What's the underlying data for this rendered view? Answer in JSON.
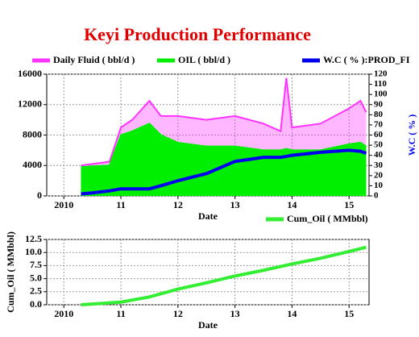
{
  "chart_data": [
    {
      "type": "line",
      "title": "Keyi Production Performance",
      "xlabel": "Date",
      "y2label": "W.C ( % )",
      "x": [
        2010.3,
        2010.5,
        2010.8,
        2011.0,
        2011.2,
        2011.5,
        2011.7,
        2012.0,
        2012.5,
        2013.0,
        2013.5,
        2013.8,
        2013.9,
        2014.0,
        2014.5,
        2015.0,
        2015.2,
        2015.3
      ],
      "series": [
        {
          "name": "Daily Fluid ( bbl/d )",
          "color": "#ff33ff",
          "kind": "area",
          "values": [
            4000,
            4200,
            4500,
            9000,
            10000,
            12500,
            10500,
            10500,
            10000,
            10500,
            9500,
            8500,
            15500,
            9000,
            9500,
            11500,
            12500,
            11000
          ]
        },
        {
          "name": "OIL ( bbl/d )",
          "color": "#00ee00",
          "kind": "area",
          "values": [
            3800,
            3900,
            4000,
            8000,
            8500,
            9500,
            8000,
            7000,
            6500,
            6500,
            6000,
            6000,
            6200,
            6000,
            6000,
            6800,
            7000,
            6500
          ]
        },
        {
          "name": "W.C ( % ):PROD_FI",
          "color": "#0000ee",
          "kind": "line",
          "axis": "y2",
          "values": [
            2,
            3,
            5,
            7,
            7,
            7,
            10,
            15,
            22,
            34,
            38,
            38,
            39,
            40,
            43,
            45,
            44,
            42
          ]
        }
      ],
      "xlim": [
        2009.7,
        2015.35
      ],
      "xticks": [
        2010,
        {
          "value": 2011,
          "label": "11"
        },
        {
          "value": 2012,
          "label": "12"
        },
        {
          "value": 2013,
          "label": "13"
        },
        {
          "value": 2014,
          "label": "14"
        },
        {
          "value": 2015,
          "label": "15"
        }
      ],
      "ylim": [
        0,
        16000
      ],
      "yticks": [
        0,
        4000,
        8000,
        12000,
        16000
      ],
      "y2lim": [
        0,
        120
      ],
      "y2ticks": [
        0,
        10,
        20,
        30,
        40,
        50,
        60,
        70,
        80,
        90,
        100,
        110,
        120
      ],
      "grid": true
    },
    {
      "type": "line",
      "xlabel": "Date",
      "ylabel": "Cum_Oil ( MMbbl)",
      "x": [
        2010.3,
        2011.0,
        2011.5,
        2012.0,
        2012.5,
        2013.0,
        2013.5,
        2014.0,
        2014.5,
        2015.0,
        2015.3
      ],
      "series": [
        {
          "name": "Cum_Oil ( MMbbl)",
          "color": "#33ee33",
          "kind": "line",
          "values": [
            0,
            0.5,
            1.5,
            3.0,
            4.2,
            5.5,
            6.6,
            7.8,
            8.9,
            10.2,
            11.0
          ]
        }
      ],
      "xlim": [
        2009.7,
        2015.35
      ],
      "xticks": [
        2010,
        {
          "value": 2011,
          "label": "11"
        },
        {
          "value": 2012,
          "label": "12"
        },
        {
          "value": 2013,
          "label": "13"
        },
        {
          "value": 2014,
          "label": "14"
        },
        {
          "value": 2015,
          "label": "15"
        }
      ],
      "ylim": [
        0,
        12.5
      ],
      "yticks": [
        {
          "value": 0,
          "label": "0.0"
        },
        {
          "value": 2.5,
          "label": "2.5"
        },
        {
          "value": 5,
          "label": "5.0"
        },
        {
          "value": 7.5,
          "label": "7.5"
        },
        {
          "value": 10,
          "label": "10.0"
        },
        {
          "value": 12.5,
          "label": "12.5"
        }
      ],
      "grid": true
    }
  ]
}
